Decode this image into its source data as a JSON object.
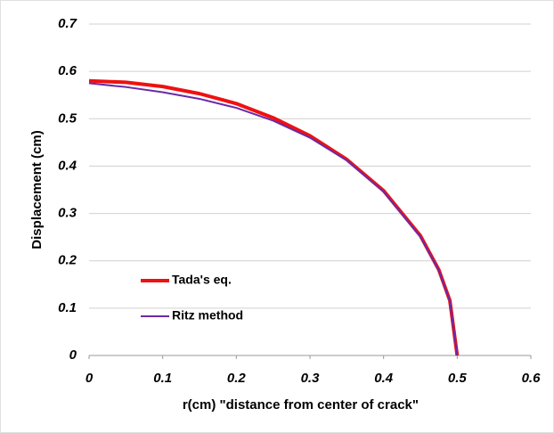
{
  "chart_data": {
    "type": "line",
    "xlabel": "r(cm) \"distance from center of crack\"",
    "ylabel": "Displacement (cm)",
    "x": [
      0,
      0.05,
      0.1,
      0.15,
      0.2,
      0.25,
      0.3,
      0.35,
      0.4,
      0.45,
      0.475,
      0.49,
      0.5
    ],
    "series": [
      {
        "name": "Tada's eq.",
        "color": "#ee1111",
        "width": 4,
        "values": [
          0.58,
          0.577,
          0.568,
          0.553,
          0.532,
          0.502,
          0.464,
          0.414,
          0.348,
          0.253,
          0.181,
          0.116,
          0
        ]
      },
      {
        "name": "Ritz method",
        "color": "#6a2aa8",
        "width": 2,
        "values": [
          0.575,
          0.567,
          0.556,
          0.542,
          0.523,
          0.496,
          0.46,
          0.412,
          0.346,
          0.251,
          0.18,
          0.115,
          0
        ]
      }
    ],
    "xlim": [
      0,
      0.6
    ],
    "ylim": [
      0,
      0.7
    ],
    "xticks": [
      0,
      0.1,
      0.2,
      0.3,
      0.4,
      0.5,
      0.6
    ],
    "yticks": [
      0,
      0.1,
      0.2,
      0.3,
      0.4,
      0.5,
      0.6,
      0.7
    ],
    "grid": true,
    "legend_position": "left"
  }
}
